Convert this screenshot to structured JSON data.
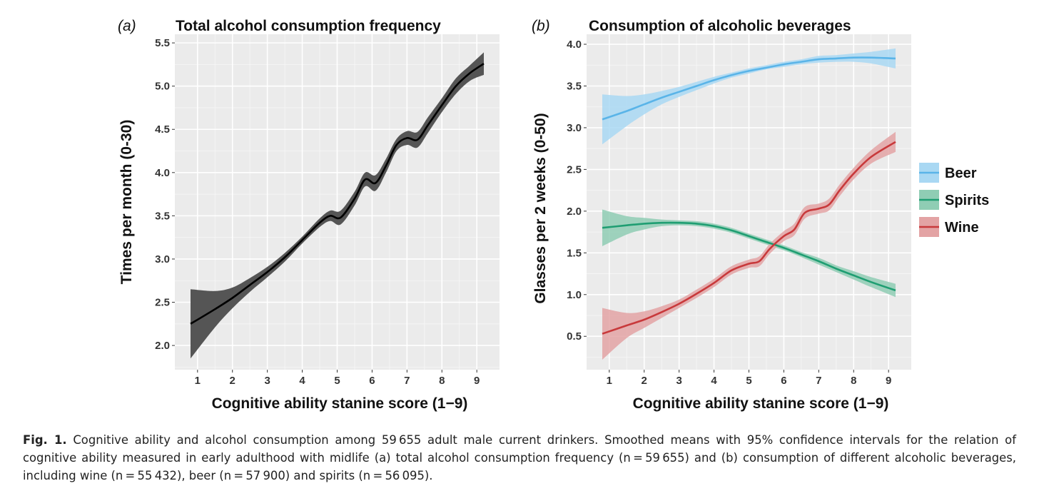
{
  "chart_data": [
    {
      "type": "line",
      "panel_label": "(a)",
      "title": "Total alcohol consumption frequency",
      "xlabel": "Cognitive ability stanine score (1−9)",
      "ylabel": "Times per month (0-30)",
      "xlim": [
        0.35,
        9.65
      ],
      "ylim": [
        1.72,
        5.6
      ],
      "xticks": [
        1,
        2,
        3,
        4,
        5,
        6,
        7,
        8,
        9
      ],
      "xtick_labels": [
        "1",
        "2",
        "3",
        "4",
        "5",
        "6",
        "7",
        "8",
        "9"
      ],
      "yticks": [
        2.0,
        2.5,
        3.0,
        3.5,
        4.0,
        4.5,
        5.0,
        5.5
      ],
      "ytick_labels": [
        "2.0",
        "2.5",
        "3.0",
        "3.5",
        "4.0",
        "4.5",
        "5.0",
        "5.5"
      ],
      "grid": true,
      "legend": "none",
      "series": [
        {
          "color": "#000000",
          "band_color": "#555555",
          "x": [
            0.8,
            1.5,
            2.0,
            2.5,
            3.0,
            3.5,
            4.0,
            4.5,
            4.8,
            5.1,
            5.5,
            5.8,
            6.1,
            6.4,
            6.7,
            7.0,
            7.3,
            7.6,
            8.0,
            8.4,
            8.8,
            9.2
          ],
          "y": [
            2.25,
            2.42,
            2.55,
            2.7,
            2.85,
            3.02,
            3.22,
            3.42,
            3.5,
            3.48,
            3.7,
            3.92,
            3.88,
            4.08,
            4.32,
            4.4,
            4.38,
            4.55,
            4.78,
            5.0,
            5.15,
            5.26
          ],
          "ci_low": [
            1.85,
            2.21,
            2.43,
            2.62,
            2.79,
            2.97,
            3.18,
            3.37,
            3.44,
            3.4,
            3.62,
            3.84,
            3.79,
            4.0,
            4.25,
            4.32,
            4.29,
            4.46,
            4.7,
            4.91,
            5.06,
            5.13
          ],
          "ci_high": [
            2.65,
            2.63,
            2.67,
            2.78,
            2.91,
            3.07,
            3.26,
            3.47,
            3.56,
            3.56,
            3.78,
            4.0,
            3.97,
            4.16,
            4.39,
            4.48,
            4.47,
            4.64,
            4.86,
            5.09,
            5.24,
            5.39
          ]
        }
      ]
    },
    {
      "type": "line",
      "panel_label": "(b)",
      "title": "Consumption of alcoholic beverages",
      "xlabel": "Cognitive ability stanine score (1−9)",
      "ylabel": "Glasses per 2 weeks (0-50)",
      "xlim": [
        0.35,
        9.65
      ],
      "ylim": [
        0.1,
        4.12
      ],
      "xticks": [
        1,
        2,
        3,
        4,
        5,
        6,
        7,
        8,
        9
      ],
      "xtick_labels": [
        "1",
        "2",
        "3",
        "4",
        "5",
        "6",
        "7",
        "8",
        "9"
      ],
      "yticks": [
        0.5,
        1.0,
        1.5,
        2.0,
        2.5,
        3.0,
        3.5,
        4.0
      ],
      "ytick_labels": [
        "0.5",
        "1.0",
        "1.5",
        "2.0",
        "2.5",
        "3.0",
        "3.5",
        "4.0"
      ],
      "grid": true,
      "legend": "right",
      "series": [
        {
          "name": "Beer",
          "color": "#5ab4e8",
          "band_color": "#a9d8f3",
          "x": [
            0.8,
            1.5,
            2.0,
            2.5,
            3.0,
            3.5,
            4.0,
            4.5,
            5.0,
            5.5,
            6.0,
            6.5,
            7.0,
            7.5,
            8.0,
            8.5,
            9.2
          ],
          "y": [
            3.1,
            3.2,
            3.28,
            3.36,
            3.43,
            3.5,
            3.57,
            3.63,
            3.68,
            3.72,
            3.76,
            3.79,
            3.82,
            3.83,
            3.84,
            3.84,
            3.83
          ],
          "ci_low": [
            2.8,
            3.02,
            3.16,
            3.28,
            3.37,
            3.45,
            3.53,
            3.6,
            3.65,
            3.7,
            3.73,
            3.76,
            3.78,
            3.79,
            3.79,
            3.77,
            3.71
          ],
          "ci_high": [
            3.4,
            3.38,
            3.4,
            3.44,
            3.49,
            3.55,
            3.61,
            3.66,
            3.71,
            3.75,
            3.79,
            3.82,
            3.86,
            3.87,
            3.89,
            3.91,
            3.95
          ]
        },
        {
          "name": "Spirits",
          "color": "#1f9e72",
          "band_color": "#8fcdb4",
          "x": [
            0.8,
            1.5,
            2.0,
            2.5,
            3.0,
            3.5,
            4.0,
            4.5,
            5.0,
            5.5,
            6.0,
            6.5,
            7.0,
            7.5,
            8.0,
            8.5,
            9.2
          ],
          "y": [
            1.8,
            1.83,
            1.85,
            1.86,
            1.86,
            1.85,
            1.82,
            1.77,
            1.7,
            1.63,
            1.56,
            1.48,
            1.4,
            1.31,
            1.23,
            1.15,
            1.05
          ],
          "ci_low": [
            1.58,
            1.72,
            1.78,
            1.82,
            1.83,
            1.82,
            1.79,
            1.74,
            1.67,
            1.6,
            1.53,
            1.45,
            1.36,
            1.27,
            1.18,
            1.09,
            0.97
          ],
          "ci_high": [
            2.02,
            1.94,
            1.92,
            1.9,
            1.89,
            1.88,
            1.85,
            1.8,
            1.73,
            1.66,
            1.59,
            1.51,
            1.44,
            1.35,
            1.28,
            1.21,
            1.13
          ]
        },
        {
          "name": "Wine",
          "color": "#c8393b",
          "band_color": "#e3a3a4",
          "x": [
            0.8,
            1.5,
            2.0,
            2.5,
            3.0,
            3.5,
            4.0,
            4.5,
            5.0,
            5.3,
            5.6,
            6.0,
            6.3,
            6.6,
            7.0,
            7.3,
            7.6,
            8.0,
            8.5,
            9.2
          ],
          "y": [
            0.53,
            0.63,
            0.7,
            0.79,
            0.89,
            1.01,
            1.14,
            1.29,
            1.37,
            1.4,
            1.55,
            1.7,
            1.78,
            1.98,
            2.03,
            2.08,
            2.25,
            2.45,
            2.65,
            2.83
          ],
          "ci_low": [
            0.22,
            0.48,
            0.6,
            0.72,
            0.84,
            0.96,
            1.09,
            1.24,
            1.32,
            1.34,
            1.49,
            1.64,
            1.71,
            1.91,
            1.97,
            2.01,
            2.18,
            2.38,
            2.57,
            2.71
          ],
          "ci_high": [
            0.84,
            0.78,
            0.8,
            0.86,
            0.94,
            1.06,
            1.19,
            1.34,
            1.42,
            1.46,
            1.61,
            1.76,
            1.85,
            2.05,
            2.09,
            2.15,
            2.32,
            2.52,
            2.73,
            2.95
          ]
        }
      ]
    }
  ],
  "caption": {
    "label": "Fig. 1.",
    "text": "Cognitive ability and alcohol consumption among 59 655 adult male current drinkers. Smoothed means with 95% confidence intervals for the relation of cognitive ability measured in early adulthood with midlife (a) total alcohol consumption frequency (n = 59 655) and (b) consumption of different alcoholic beverages, including wine (n = 55 432), beer (n = 57 900) and spirits (n = 56 095)."
  }
}
